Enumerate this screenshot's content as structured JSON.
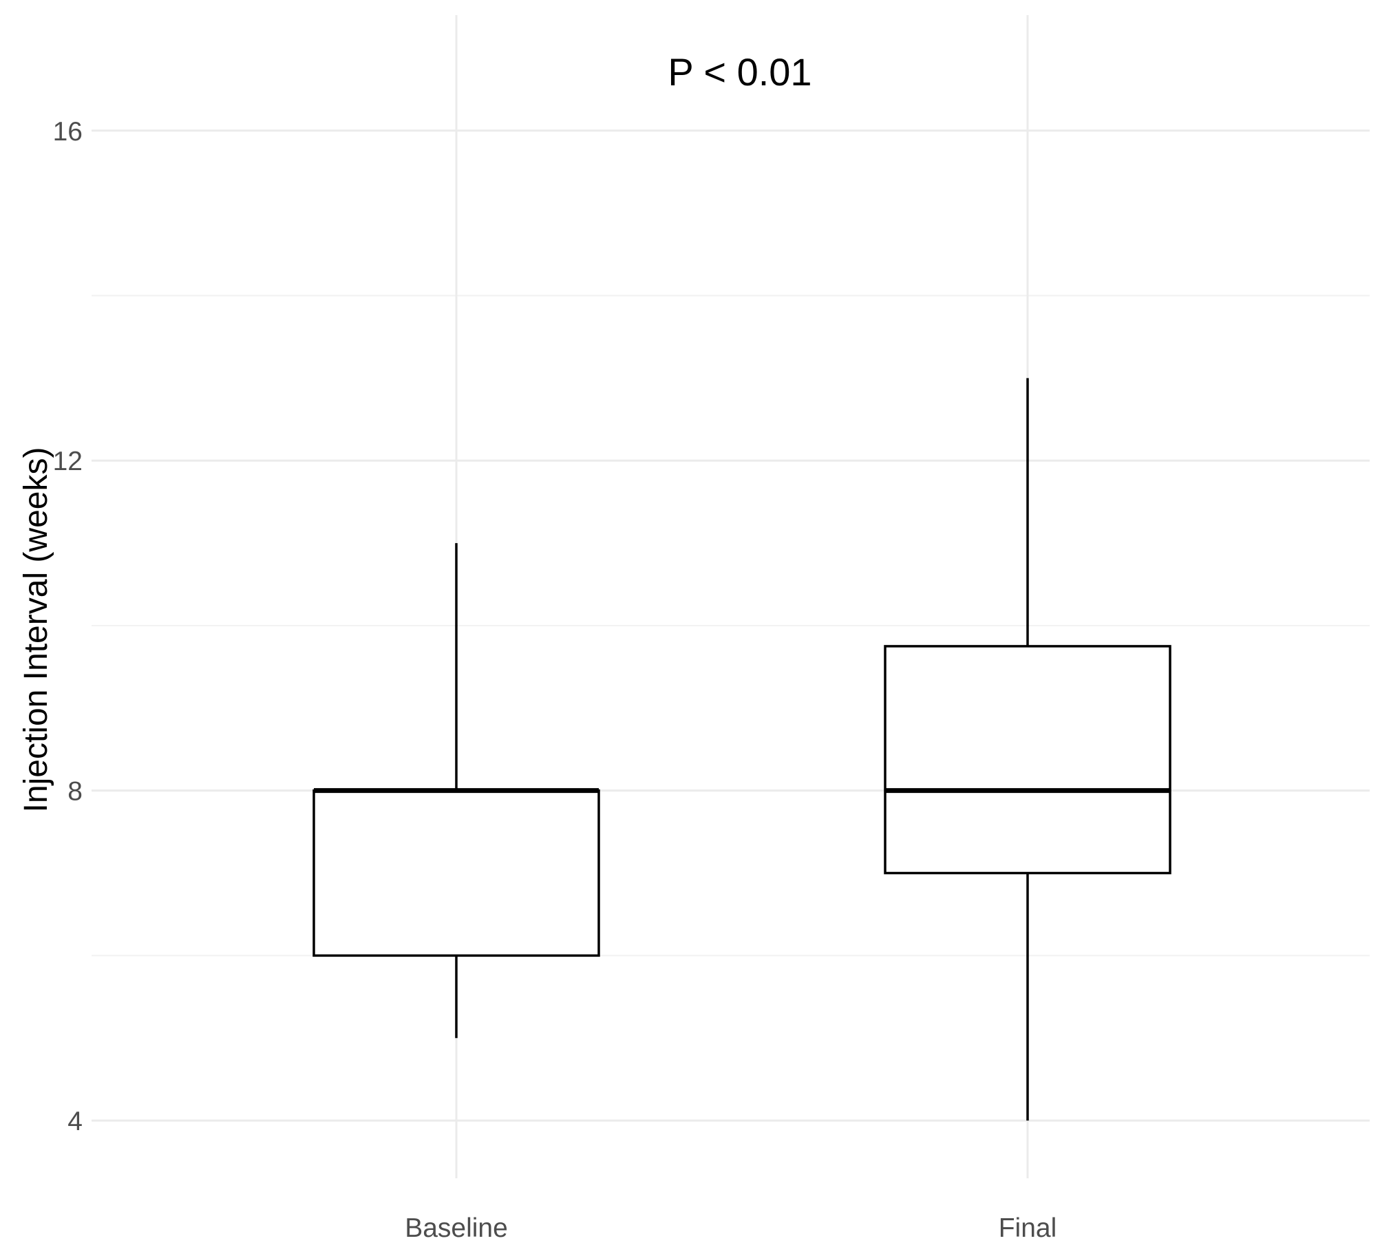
{
  "chart_data": {
    "type": "box",
    "title": "",
    "annotation": "P < 0.01",
    "xlabel": "",
    "ylabel": "Injection Interval (weeks)",
    "categories": [
      "Baseline",
      "Final"
    ],
    "ylim": [
      3.3,
      17.4
    ],
    "yticks": [
      4,
      8,
      12,
      16
    ],
    "ytick_labels": [
      "4",
      "8",
      "12",
      "16"
    ],
    "boxes": [
      {
        "category": "Baseline",
        "whisker_low": 5,
        "q1": 6,
        "median": 8,
        "q3": 8,
        "whisker_high": 11
      },
      {
        "category": "Final",
        "whisker_low": 4,
        "q1": 7,
        "median": 8,
        "q3": 9.75,
        "whisker_high": 13
      }
    ],
    "grid": true,
    "colors": {
      "box_fill": "#ffffff",
      "box_stroke": "#000000",
      "grid": "#ebebeb",
      "tick_text": "#4d4d4d"
    }
  }
}
